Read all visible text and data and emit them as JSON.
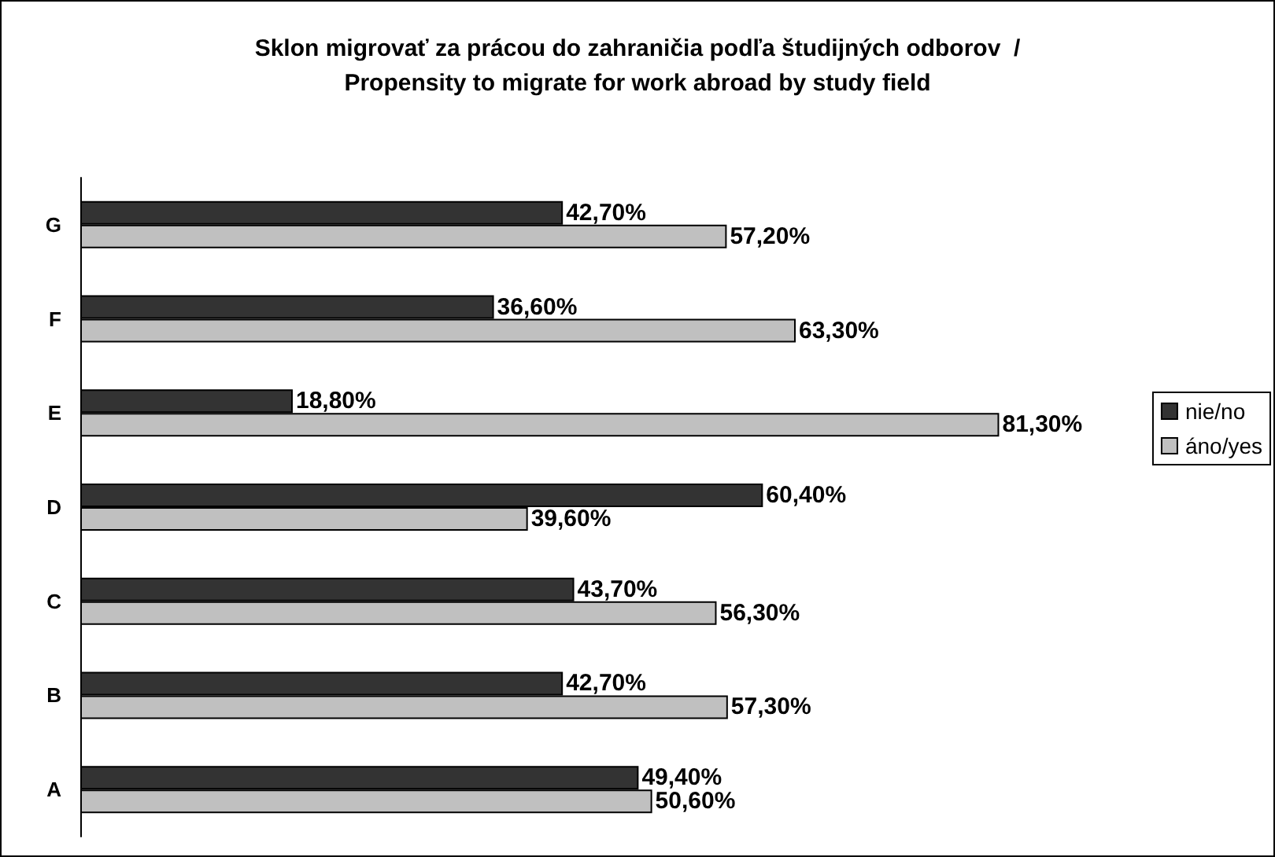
{
  "chart_data": {
    "type": "bar",
    "orientation": "horizontal",
    "title": "Sklon migrovať za prácou do zahraničia podľa študijných odborov  /\nPropensity to migrate for work abroad by study field",
    "categories": [
      "G",
      "F",
      "E",
      "D",
      "C",
      "B",
      "A"
    ],
    "series": [
      {
        "name": "nie/no",
        "color": "#333333",
        "values": [
          42.7,
          36.6,
          18.8,
          60.4,
          43.7,
          42.7,
          49.4
        ],
        "value_labels": [
          "42,70%",
          "36,60%",
          "18,80%",
          "60,40%",
          "43,70%",
          "42,70%",
          "49,40%"
        ]
      },
      {
        "name": "áno/yes",
        "color": "#c0c0c0",
        "values": [
          57.2,
          63.3,
          81.3,
          39.6,
          56.3,
          57.3,
          50.6
        ],
        "value_labels": [
          "57,20%",
          "63,30%",
          "81,30%",
          "39,60%",
          "56,30%",
          "57,30%",
          "50,60%"
        ]
      }
    ],
    "tick_labels": "y",
    "grid": false,
    "legend": "right"
  }
}
